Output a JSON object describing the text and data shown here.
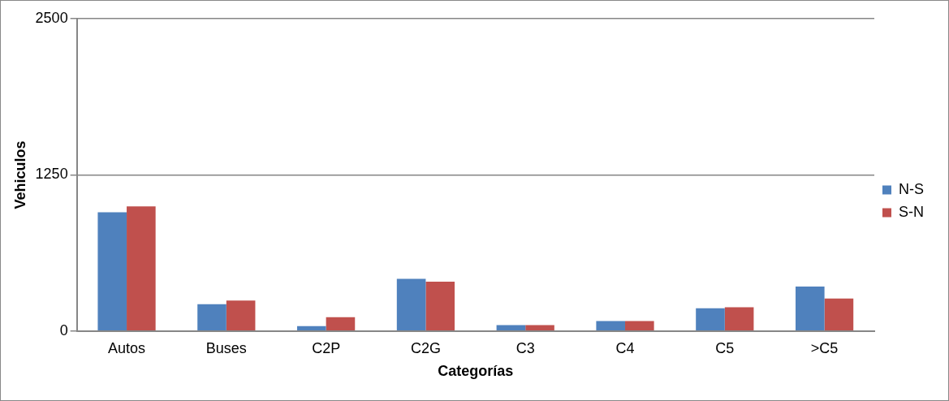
{
  "chart_data": {
    "type": "bar",
    "xlabel": "Categorías",
    "ylabel": "Vehiculos",
    "categories": [
      "Autos",
      "Buses",
      "C2P",
      "C2G",
      "C3",
      "C4",
      "C5",
      ">C5"
    ],
    "series": [
      {
        "name": "N-S",
        "color": "#4f81bd",
        "values": [
          950,
          215,
          39,
          417,
          47,
          80,
          183,
          356
        ]
      },
      {
        "name": "S-N",
        "color": "#c0504d",
        "values": [
          997,
          244,
          110,
          395,
          47,
          80,
          190,
          261
        ]
      }
    ],
    "ylim": [
      0,
      2500
    ],
    "yticks": [
      0,
      1250,
      2500
    ],
    "grid": "y",
    "legend": "right"
  }
}
